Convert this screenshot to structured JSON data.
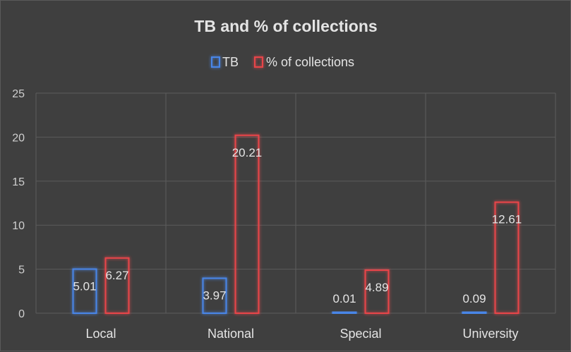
{
  "chart_data": {
    "type": "bar",
    "title": "TB and % of collections",
    "categories": [
      "Local",
      "National",
      "Special",
      "University"
    ],
    "series": [
      {
        "name": "TB",
        "values": [
          5.01,
          3.97,
          0.01,
          0.09
        ],
        "color": "#4a86e8"
      },
      {
        "name": "% of collections",
        "values": [
          6.27,
          20.21,
          4.89,
          12.61
        ],
        "color": "#e8454a"
      }
    ],
    "ylim": [
      0,
      25
    ],
    "yticks": [
      "0",
      "5",
      "10",
      "15",
      "20",
      "25"
    ],
    "data_labels": [
      [
        "5.01",
        "3.97",
        "0.01",
        "0.09"
      ],
      [
        "6.27",
        "20.21",
        "4.89",
        "12.61"
      ]
    ],
    "grid": true,
    "legend_position": "top-center",
    "background_color": "#3f3f3f"
  }
}
